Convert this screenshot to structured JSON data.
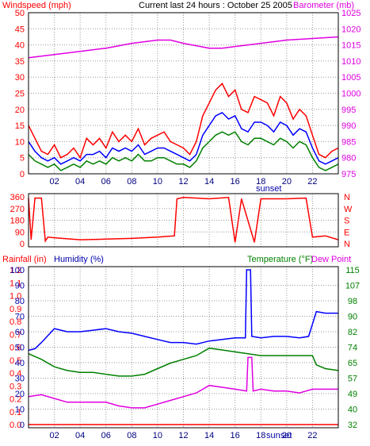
{
  "chart_data": [
    {
      "type": "line",
      "panel": "wind-baro",
      "title": "Current last 24 hours : October 25 2005",
      "left_label": "Windspeed (mph)",
      "right_label": "Barometer (mb)",
      "left_ylim": [
        0,
        50
      ],
      "left_ticks": [
        "0",
        "5",
        "10",
        "15",
        "20",
        "25",
        "30",
        "35",
        "40",
        "45",
        "50"
      ],
      "right_ylim": [
        975,
        1025
      ],
      "right_ticks": [
        "975",
        "980",
        "985",
        "990",
        "995",
        "1000",
        "1005",
        "1010",
        "1015",
        "1020",
        "1025"
      ],
      "x_ticks": [
        "02",
        "04",
        "06",
        "08",
        "10",
        "12",
        "14",
        "16",
        "18",
        "20",
        "22"
      ],
      "x_event_label": "sunset",
      "grid": true,
      "series": [
        {
          "key": "gust",
          "color": "#ff0000",
          "x": [
            0,
            0.5,
            1,
            1.5,
            2,
            2.5,
            3,
            3.5,
            4,
            4.5,
            5,
            5.5,
            6,
            6.5,
            7,
            7.5,
            8,
            8.5,
            9,
            9.5,
            10,
            10.5,
            11,
            11.5,
            12,
            12.5,
            13,
            13.5,
            14,
            14.5,
            15,
            15.5,
            16,
            16.5,
            17,
            17.5,
            18,
            18.5,
            19,
            19.5,
            20,
            20.5,
            21,
            21.5,
            22,
            22.5,
            23,
            23.5,
            24
          ],
          "values": [
            15,
            11,
            7,
            6,
            9,
            5,
            6,
            8,
            5,
            11,
            9,
            11,
            8,
            13,
            10,
            12,
            10,
            14,
            9,
            11,
            12,
            13,
            10,
            9,
            8,
            6,
            10,
            18,
            22,
            26,
            28,
            24,
            26,
            20,
            19,
            24,
            23,
            22,
            18,
            24,
            22,
            17,
            20,
            18,
            12,
            6,
            5,
            7,
            8
          ]
        },
        {
          "key": "average",
          "color": "#0000ff",
          "x": [
            0,
            0.5,
            1,
            1.5,
            2,
            2.5,
            3,
            3.5,
            4,
            4.5,
            5,
            5.5,
            6,
            6.5,
            7,
            7.5,
            8,
            8.5,
            9,
            9.5,
            10,
            10.5,
            11,
            11.5,
            12,
            12.5,
            13,
            13.5,
            14,
            14.5,
            15,
            15.5,
            16,
            16.5,
            17,
            17.5,
            18,
            18.5,
            19,
            19.5,
            20,
            20.5,
            21,
            21.5,
            22,
            22.5,
            23,
            23.5,
            24
          ],
          "values": [
            10,
            7,
            5,
            4,
            5,
            3,
            4,
            5,
            4,
            6,
            6,
            7,
            5,
            8,
            7,
            8,
            7,
            9,
            6,
            7,
            8,
            8,
            7,
            6,
            5,
            4,
            6,
            12,
            15,
            18,
            19,
            17,
            18,
            14,
            13,
            16,
            16,
            15,
            13,
            16,
            15,
            12,
            14,
            13,
            8,
            4,
            3,
            4,
            5
          ]
        },
        {
          "key": "minimum",
          "color": "#008000",
          "x": [
            0,
            0.5,
            1,
            1.5,
            2,
            2.5,
            3,
            3.5,
            4,
            4.5,
            5,
            5.5,
            6,
            6.5,
            7,
            7.5,
            8,
            8.5,
            9,
            9.5,
            10,
            10.5,
            11,
            11.5,
            12,
            12.5,
            13,
            13.5,
            14,
            14.5,
            15,
            15.5,
            16,
            16.5,
            17,
            17.5,
            18,
            18.5,
            19,
            19.5,
            20,
            20.5,
            21,
            21.5,
            22,
            22.5,
            23,
            23.5,
            24
          ],
          "values": [
            6,
            4,
            3,
            2,
            3,
            1,
            2,
            3,
            2,
            4,
            3,
            4,
            3,
            5,
            4,
            5,
            4,
            6,
            4,
            4,
            5,
            5,
            4,
            3,
            3,
            2,
            4,
            8,
            10,
            12,
            13,
            12,
            13,
            10,
            9,
            11,
            11,
            10,
            9,
            11,
            10,
            8,
            10,
            9,
            5,
            2,
            1,
            2,
            3
          ]
        },
        {
          "key": "barometer",
          "color": "#e000e0",
          "axis": "right",
          "x": [
            0,
            2,
            4,
            6,
            8,
            10,
            11,
            12,
            14,
            15,
            16,
            18,
            20,
            22,
            24
          ],
          "values": [
            1011,
            1012,
            1013,
            1014,
            1015.5,
            1016.5,
            1016.5,
            1015.5,
            1014,
            1014,
            1014.5,
            1015.5,
            1016.5,
            1017,
            1017.5
          ]
        }
      ]
    },
    {
      "type": "line",
      "panel": "wind-direction",
      "left_ticks": [
        "0",
        "90",
        "180",
        "270",
        "360"
      ],
      "left_ylim": [
        0,
        360
      ],
      "right_ticks": [
        "N",
        "W",
        "S",
        "E",
        "N"
      ],
      "grid": true,
      "series": [
        {
          "key": "direction",
          "color": "#ff0000",
          "x": [
            0,
            0.2,
            0.5,
            1,
            1.3,
            1.5,
            2,
            4,
            6,
            8,
            10,
            11.3,
            11.5,
            12,
            14,
            15.5,
            16,
            16.5,
            17.5,
            18,
            20,
            21.5,
            22,
            23,
            24
          ],
          "values": [
            350,
            30,
            350,
            350,
            20,
            50,
            45,
            30,
            35,
            40,
            50,
            60,
            345,
            355,
            345,
            355,
            10,
            345,
            10,
            345,
            345,
            350,
            50,
            60,
            30
          ]
        }
      ]
    },
    {
      "type": "line",
      "panel": "rain-hum-temp",
      "rain_label": "Rainfall (in)",
      "humidity_label": "Humidity (%)",
      "temperature_label": "Temperature (°F)",
      "dewpoint_label": "Dew Point",
      "rain_ylim": [
        0,
        1.2
      ],
      "rain_ticks": [
        "0.0",
        "0.1",
        "0.2",
        "0.3",
        "0.4",
        "0.5",
        "0.6",
        "0.7",
        "0.8",
        "0.9",
        "1.0",
        "1.1",
        "1.2"
      ],
      "humidity_ylim": [
        0,
        100
      ],
      "humidity_ticks": [
        "0",
        "10",
        "20",
        "30",
        "40",
        "50",
        "60",
        "70",
        "80",
        "90",
        "100"
      ],
      "temp_ylim": [
        32,
        115
      ],
      "temp_ticks": [
        "32",
        "40",
        "49",
        "57",
        "65",
        "74",
        "82",
        "90",
        "98",
        "107",
        "115"
      ],
      "x_ticks": [
        "02",
        "04",
        "06",
        "08",
        "10",
        "12",
        "14",
        "16",
        "18",
        "20",
        "22"
      ],
      "x_event_label": "sunset",
      "grid": true,
      "series": [
        {
          "key": "rainfall",
          "color": "#ff0000",
          "axis": "rain",
          "x": [
            0,
            24
          ],
          "values": [
            0,
            0
          ]
        },
        {
          "key": "humidity",
          "color": "#0000ff",
          "axis": "humidity",
          "x": [
            0,
            0.5,
            1,
            2,
            3,
            4,
            5,
            6,
            7,
            8,
            9,
            10,
            11,
            12,
            13,
            14,
            15,
            16,
            16.8,
            16.9,
            17.2,
            17.3,
            18,
            19,
            20,
            21,
            21.7,
            22,
            22.3,
            23,
            24
          ],
          "values": [
            48,
            49,
            53,
            62,
            60,
            60,
            61,
            62,
            60,
            59,
            57,
            55,
            53,
            53,
            52,
            54,
            55,
            56,
            56,
            100,
            100,
            57,
            56,
            57,
            57,
            56,
            57,
            65,
            73,
            72,
            72
          ]
        },
        {
          "key": "temperature",
          "color": "#008000",
          "axis": "temp",
          "x": [
            0,
            1,
            2,
            3,
            4,
            5,
            6,
            7,
            8,
            9,
            10,
            11,
            12,
            13,
            14,
            15,
            16,
            17,
            18,
            19,
            20,
            21,
            22,
            22.3,
            23,
            24
          ],
          "values": [
            70,
            67,
            63,
            61,
            60,
            60,
            59,
            58,
            58,
            59,
            62,
            65,
            67,
            69,
            73,
            72,
            71,
            70,
            69,
            69,
            69,
            69,
            69,
            64,
            62,
            61
          ]
        },
        {
          "key": "dewpoint",
          "color": "#e000e0",
          "axis": "temp",
          "x": [
            0,
            1,
            2,
            3,
            4,
            5,
            6,
            7,
            8,
            9,
            10,
            11,
            12,
            13,
            14,
            15,
            16,
            16.9,
            17,
            17.3,
            17.4,
            18,
            19,
            20,
            21,
            22,
            23,
            24
          ],
          "values": [
            47,
            48,
            46,
            44,
            44,
            44,
            44,
            42,
            41,
            41,
            43,
            45,
            47,
            49,
            53,
            52,
            51,
            50,
            68,
            68,
            50,
            51,
            50,
            50,
            49,
            51,
            51,
            51
          ]
        }
      ]
    }
  ]
}
